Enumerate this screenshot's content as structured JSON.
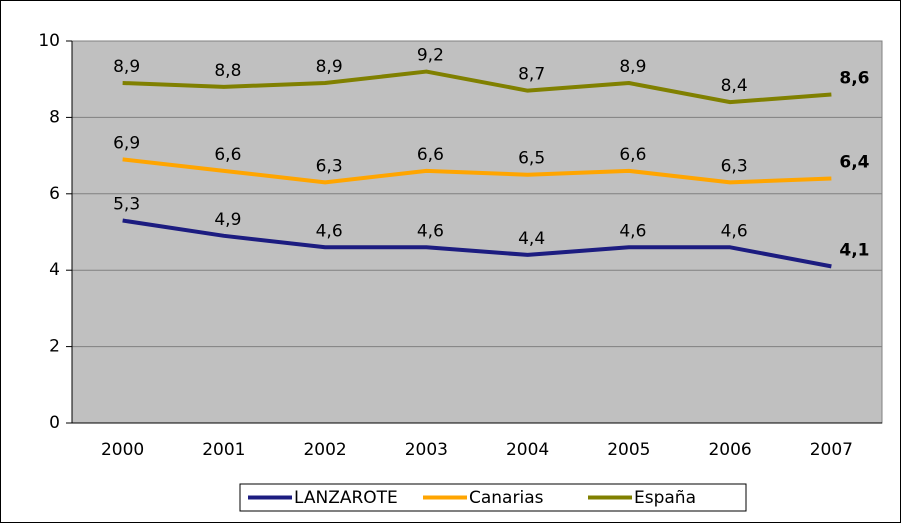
{
  "chart_data": {
    "type": "line",
    "categories": [
      "2000",
      "2001",
      "2002",
      "2003",
      "2004",
      "2005",
      "2006",
      "2007"
    ],
    "series": [
      {
        "name": "LANZAROTE",
        "color": "#1c1c80",
        "values": [
          5.3,
          4.9,
          4.6,
          4.6,
          4.4,
          4.6,
          4.6,
          4.1
        ],
        "value_labels": [
          "5,3",
          "4,9",
          "4,6",
          "4,6",
          "4,4",
          "4,6",
          "4,6",
          "4,1"
        ]
      },
      {
        "name": "Canarias",
        "color": "#ffa500",
        "values": [
          6.9,
          6.6,
          6.3,
          6.6,
          6.5,
          6.6,
          6.3,
          6.4
        ],
        "value_labels": [
          "6,9",
          "6,6",
          "6,3",
          "6,6",
          "6,5",
          "6,6",
          "6,3",
          "6,4"
        ]
      },
      {
        "name": "España",
        "color": "#808000",
        "values": [
          8.9,
          8.8,
          8.9,
          9.2,
          8.7,
          8.9,
          8.4,
          8.6
        ],
        "value_labels": [
          "8,9",
          "8,8",
          "8,9",
          "9,2",
          "8,7",
          "8,9",
          "8,4",
          "8,6"
        ]
      }
    ],
    "ylim": [
      0,
      10
    ],
    "yticks": [
      0,
      2,
      4,
      6,
      8,
      10
    ],
    "grid": true,
    "legend": "bottom"
  }
}
